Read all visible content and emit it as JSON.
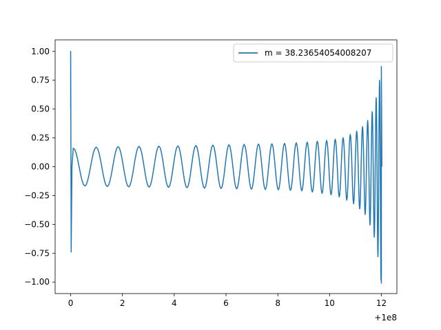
{
  "chart_data": {
    "type": "line",
    "title": "",
    "xlabel": "",
    "ylabel": "",
    "x_offset_label": "+1e8",
    "xlim": [
      -0.6,
      12.6
    ],
    "ylim": [
      -1.1,
      1.1
    ],
    "x_ticks": [
      0,
      2,
      4,
      6,
      8,
      10,
      12
    ],
    "y_ticks": [
      1.0,
      0.75,
      0.5,
      0.25,
      0.0,
      -0.25,
      -0.5,
      -0.75,
      -1.0
    ],
    "y_tick_labels": [
      "1.00",
      "0.75",
      "0.50",
      "0.25",
      "0.00",
      "−0.25",
      "−0.50",
      "−0.75",
      "−1.00"
    ],
    "x_tick_labels": [
      "0",
      "2",
      "4",
      "6",
      "8",
      "10",
      "12"
    ],
    "grid": false,
    "legend_position": "top-right",
    "series": [
      {
        "name": "m = 38.23654054008207",
        "color": "#1f77b4",
        "envelope": {
          "x": [
            0.0,
            0.1,
            0.2,
            1.0,
            2.0,
            4.0,
            6.0,
            8.0,
            9.0,
            10.0,
            10.5,
            11.0,
            11.4,
            11.7,
            11.9,
            12.0
          ],
          "upper": [
            1.0,
            0.16,
            0.165,
            0.17,
            0.175,
            0.18,
            0.19,
            0.2,
            0.21,
            0.23,
            0.25,
            0.3,
            0.37,
            0.5,
            0.7,
            0.87
          ],
          "lower": [
            -0.74,
            -0.16,
            -0.165,
            -0.17,
            -0.175,
            -0.18,
            -0.19,
            -0.2,
            -0.21,
            -0.24,
            -0.27,
            -0.33,
            -0.42,
            -0.58,
            -0.82,
            -1.01
          ]
        }
      }
    ]
  }
}
